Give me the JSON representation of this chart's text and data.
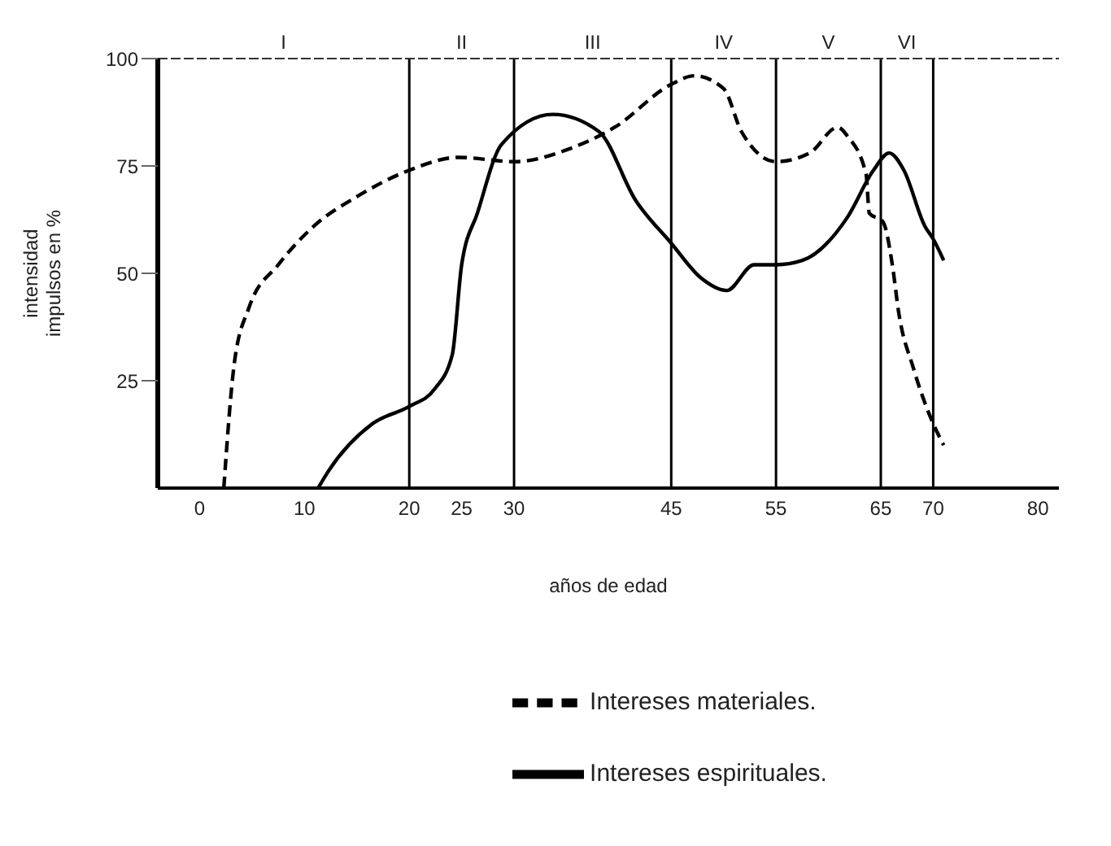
{
  "chart_data": {
    "type": "line",
    "xlabel": "años de edad",
    "ylabel": "intensidad\nimpulsos en %",
    "xlim": [
      -4,
      82
    ],
    "xticks": [
      0,
      10,
      20,
      25,
      30,
      45,
      55,
      65,
      70,
      80
    ],
    "ylim": [
      0,
      100
    ],
    "yticks": [
      25,
      50,
      75,
      100
    ],
    "grid": false,
    "legend": "bottom",
    "marker": "none",
    "series": [
      {
        "name": "Intereses materiales.",
        "color": "#000000",
        "line_style": "dashed",
        "x": [
          2.3,
          3.3,
          4.7,
          7.5,
          10.9,
          15.1,
          20,
          24.7,
          30,
          35.3,
          39.6,
          45,
          47.2,
          50,
          51.7,
          55,
          58.2,
          60.9,
          61.8,
          63.6,
          63.9,
          65.2,
          66.1,
          66.7,
          68.1,
          70,
          71
        ],
        "values": [
          0,
          29,
          42,
          52,
          61,
          68,
          74,
          77,
          76,
          79,
          84,
          94,
          96,
          93,
          83,
          76,
          78,
          84,
          82,
          73,
          64,
          62,
          52,
          41,
          28,
          15,
          10
        ]
      },
      {
        "name": "Intereses espirituales.",
        "color": "#000000",
        "line_style": "solid",
        "x": [
          11.3,
          12.3,
          16.5,
          20,
          22.4,
          24.1,
          25,
          26.5,
          28.8,
          33.7,
          38.1,
          41.6,
          45,
          47.8,
          50.3,
          52.9,
          55,
          57.5,
          61.8,
          64.3,
          65.8,
          67.2,
          69.2,
          70,
          71
        ],
        "values": [
          0,
          4,
          15,
          19,
          23,
          31,
          52,
          64,
          80,
          87,
          83,
          67,
          57,
          49,
          46,
          52,
          52,
          53,
          63,
          74,
          78,
          74,
          61,
          58,
          53
        ]
      }
    ],
    "ref_lines": [
      {
        "axis": "x",
        "value": 20
      },
      {
        "axis": "x",
        "value": 30
      },
      {
        "axis": "x",
        "value": 45
      },
      {
        "axis": "x",
        "value": 55
      },
      {
        "axis": "x",
        "value": 65
      },
      {
        "axis": "x",
        "value": 70
      }
    ],
    "annotations": [
      "I",
      "II",
      "III",
      "IV",
      "V",
      "VI"
    ]
  }
}
